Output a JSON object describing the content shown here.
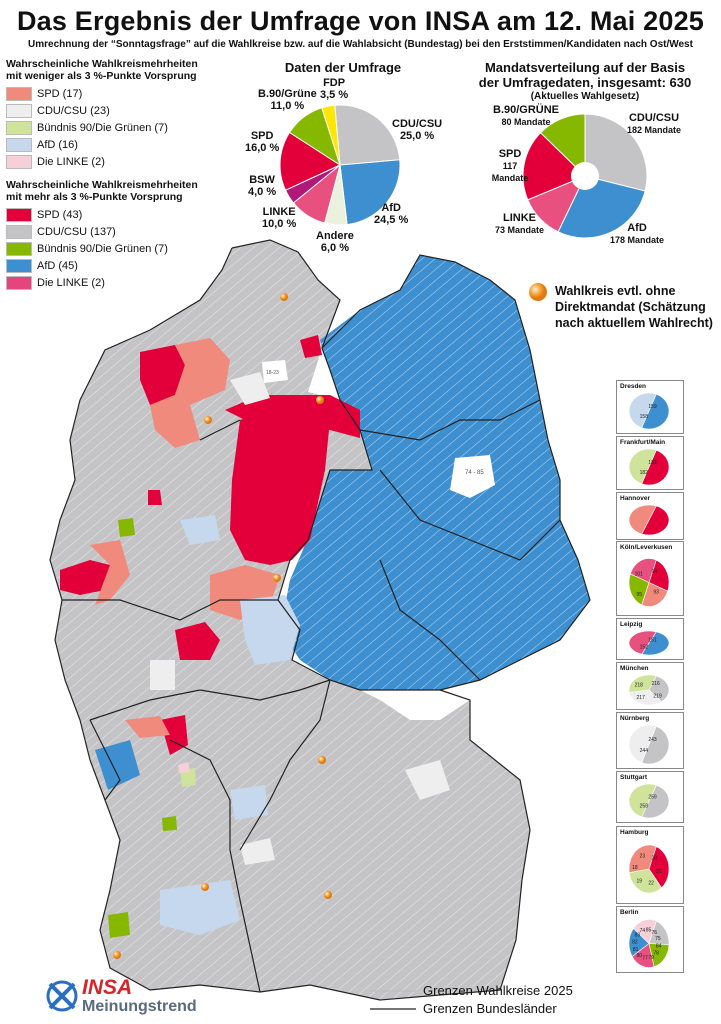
{
  "title": "Das Ergebnis der Umfrage von INSA am 12. Mai 2025",
  "subtitle": "Umrechnung der “Sonntagsfrage” auf die Wahlkreise bzw. auf die Wahlabsicht (Bundestag) bei den Erststimmen/Kandidaten nach Ost/West",
  "legend_weak": {
    "heading_line1": "Wahrscheinliche Wahlkreismehrheiten",
    "heading_line2": "mit weniger als 3 %-Punkte Vorsprung",
    "items": [
      {
        "label": "SPD (17)",
        "color": "#f08a7c"
      },
      {
        "label": "CDU/CSU (23)",
        "color": "#eeeeee"
      },
      {
        "label": "Bündnis 90/Die Grünen (7)",
        "color": "#cfe39a"
      },
      {
        "label": "AfD (16)",
        "color": "#c6d8ee"
      },
      {
        "label": "Die LINKE (2)",
        "color": "#f6cfd8"
      }
    ]
  },
  "legend_strong": {
    "heading_line1": "Wahrscheinliche Wahlkreismehrheiten",
    "heading_line2": "mit mehr als 3 %-Punkte Vorsprung",
    "items": [
      {
        "label": "SPD (43)",
        "color": "#e3003a"
      },
      {
        "label": "CDU/CSU (137)",
        "color": "#c4c4c6"
      },
      {
        "label": "Bündnis 90/Die Grünen (7)",
        "color": "#86b800"
      },
      {
        "label": "AfD (45)",
        "color": "#3d8fd0"
      },
      {
        "label": "Die LINKE (2)",
        "color": "#e3467c"
      }
    ]
  },
  "chart_data": [
    {
      "type": "pie",
      "title": "Daten der Umfrage",
      "slices": [
        {
          "label": "CDU/CSU",
          "value_text": "25,0 %",
          "value": 25.0,
          "color": "#c4c4c6"
        },
        {
          "label": "AfD",
          "value_text": "24,5 %",
          "value": 24.5,
          "color": "#3d8fd0"
        },
        {
          "label": "Andere",
          "value_text": "6,0 %",
          "value": 6.0,
          "color": "#eaf2dd"
        },
        {
          "label": "LINKE",
          "value_text": "10,0 %",
          "value": 10.0,
          "color": "#e8507f"
        },
        {
          "label": "BSW",
          "value_text": "4,0 %",
          "value": 4.0,
          "color": "#b0187a"
        },
        {
          "label": "SPD",
          "value_text": "16,0 %",
          "value": 16.0,
          "color": "#e3003a"
        },
        {
          "label": "B.90/Grüne",
          "value_text": "11,0 %",
          "value": 11.0,
          "color": "#86b800"
        },
        {
          "label": "FDP",
          "value_text": "3,5 %",
          "value": 3.5,
          "color": "#ffe600"
        }
      ]
    },
    {
      "type": "pie",
      "title_line1": "Mandatsverteilung auf der Basis",
      "title_line2": "der Umfragedaten, insgesamt: 630",
      "title_note": "(Aktuelles Wahlgesetz)",
      "slices": [
        {
          "label": "CDU/CSU",
          "value_text": "182 Mandate",
          "value": 182,
          "color": "#c4c4c6"
        },
        {
          "label": "AfD",
          "value_text": "178 Mandate",
          "value": 178,
          "color": "#3d8fd0"
        },
        {
          "label": "LINKE",
          "value_text": "73 Mandate",
          "value": 73,
          "color": "#e8507f"
        },
        {
          "label": "SPD",
          "value_text": "117 Mandate",
          "value": 117,
          "color": "#e3003a"
        },
        {
          "label": "B.90/GRÜNE",
          "value_text": "80 Mandate",
          "value": 80,
          "color": "#86b800"
        }
      ]
    }
  ],
  "map_note_line1": "Wahlkreis evtl. ohne",
  "map_note_line2": "Direktmandat (Schätzung",
  "map_note_line3": "nach aktuellem Wahlrecht)",
  "map_labels": {
    "berlin_wk": "74 - 85",
    "hamburg_wk": "18-23"
  },
  "insets": [
    {
      "title": "Dresden",
      "numbers": [
        "159",
        "158"
      ],
      "colors": [
        "#3d8fd0",
        "#c6d8ee"
      ]
    },
    {
      "title": "Frankfurt/Main",
      "numbers": [
        "183",
        "182"
      ],
      "colors": [
        "#e3003a",
        "#cfe39a"
      ]
    },
    {
      "title": "Hannover",
      "numbers": [],
      "colors": [
        "#e3003a",
        "#f08a7c"
      ]
    },
    {
      "title": "Köln/Leverkusen",
      "numbers": [
        "94",
        "93",
        "95",
        "101"
      ],
      "colors": [
        "#e3003a",
        "#f08a7c",
        "#86b800",
        "#e8507f"
      ]
    },
    {
      "title": "Leipzig",
      "numbers": [
        "151",
        "152"
      ],
      "colors": [
        "#3d8fd0",
        "#e8507f"
      ]
    },
    {
      "title": "München",
      "numbers": [
        "216",
        "219",
        "217",
        "218"
      ],
      "colors": [
        "#c4c4c6",
        "#eeeeee",
        "#cfe39a"
      ]
    },
    {
      "title": "Nürnberg",
      "numbers": [
        "243",
        "244"
      ],
      "colors": [
        "#c4c4c6",
        "#eeeeee"
      ]
    },
    {
      "title": "Stuttgart",
      "numbers": [
        "259",
        "258"
      ],
      "colors": [
        "#c4c4c6",
        "#cfe39a"
      ]
    },
    {
      "title": "Hamburg",
      "numbers": [
        "20",
        "21",
        "22",
        "19",
        "18",
        "23"
      ],
      "colors": [
        "#e3003a",
        "#cfe39a",
        "#f08a7c"
      ]
    },
    {
      "title": "Berlin",
      "numbers": [
        "76",
        "75",
        "84",
        "78",
        "79",
        "77",
        "80",
        "81",
        "82",
        "83",
        "74",
        "85"
      ],
      "colors": [
        "#c4c4c6",
        "#86b800",
        "#e8507f",
        "#3d8fd0",
        "#f6cfd8"
      ]
    }
  ],
  "bottom_legend": {
    "wahlkreise": "Grenzen Wahlkreise 2025",
    "bundeslaender": "Grenzen Bundesländer"
  },
  "logo": {
    "insa": "INSA",
    "meinungstrend": "Meinungstrend"
  }
}
